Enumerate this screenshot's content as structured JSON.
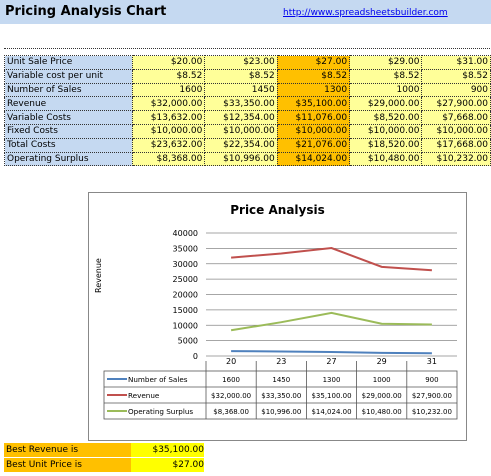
{
  "header": {
    "title": "Pricing Analysis Chart",
    "link": "http://www.spreadsheetsbuilder.com"
  },
  "table": {
    "rows": [
      {
        "label": "Unit Sale Price",
        "values": [
          "$20.00",
          "$23.00",
          "$27.00",
          "$29.00",
          "$31.00"
        ]
      },
      {
        "label": "Variable cost per unit",
        "values": [
          "$8.52",
          "$8.52",
          "$8.52",
          "$8.52",
          "$8.52"
        ]
      },
      {
        "label": "Number of Sales",
        "values": [
          "1600",
          "1450",
          "1300",
          "1000",
          "900"
        ]
      },
      {
        "label": "Revenue",
        "values": [
          "$32,000.00",
          "$33,350.00",
          "$35,100.00",
          "$29,000.00",
          "$27,900.00"
        ]
      },
      {
        "label": "Variable Costs",
        "values": [
          "$13,632.00",
          "$12,354.00",
          "$11,076.00",
          "$8,520.00",
          "$7,668.00"
        ]
      },
      {
        "label": "Fixed Costs",
        "values": [
          "$10,000.00",
          "$10,000.00",
          "$10,000.00",
          "$10,000.00",
          "$10,000.00"
        ]
      },
      {
        "label": "Total Costs",
        "values": [
          "$23,632.00",
          "$22,354.00",
          "$21,076.00",
          "$18,520.00",
          "$17,668.00"
        ]
      },
      {
        "label": "Operating Surplus",
        "values": [
          "$8,368.00",
          "$10,996.00",
          "$14,024.00",
          "$10,480.00",
          "$10,232.00"
        ]
      }
    ],
    "highlight_column": 2,
    "highlight_color": "#ffc000",
    "value_bg": "#ffff99",
    "label_bg": "#c5d9f1"
  },
  "chart_data": {
    "type": "line",
    "title": "Price Analysis",
    "ylabel": "Revenue",
    "xlabel": "",
    "categories": [
      "20",
      "23",
      "27",
      "29",
      "31"
    ],
    "ylim": [
      0,
      40000
    ],
    "yticks": [
      "0",
      "5000",
      "10000",
      "15000",
      "20000",
      "25000",
      "30000",
      "35000",
      "40000"
    ],
    "grid": true,
    "series": [
      {
        "name": "Number of Sales",
        "color": "#4f81bd",
        "values": [
          1600,
          1450,
          1300,
          1000,
          900
        ],
        "labels": [
          "1600",
          "1450",
          "1300",
          "1000",
          "900"
        ]
      },
      {
        "name": "Revenue",
        "color": "#c0504d",
        "values": [
          32000,
          33350,
          35100,
          29000,
          27900
        ],
        "labels": [
          "$32,000.00",
          "$33,350.00",
          "$35,100.00",
          "$29,000.00",
          "$27,900.00"
        ]
      },
      {
        "name": "Operating Surplus",
        "color": "#9bbb59",
        "values": [
          8368,
          10996,
          14024,
          10480,
          10232
        ],
        "labels": [
          "$8,368.00",
          "$10,996.00",
          "$14,024.00",
          "$10,480.00",
          "$10,232.00"
        ]
      }
    ]
  },
  "summary": {
    "best_revenue_label": "Best Revenue is",
    "best_revenue_value": "$35,100.00",
    "best_price_label": "Best Unit Price is",
    "best_price_value": "$27.00"
  }
}
